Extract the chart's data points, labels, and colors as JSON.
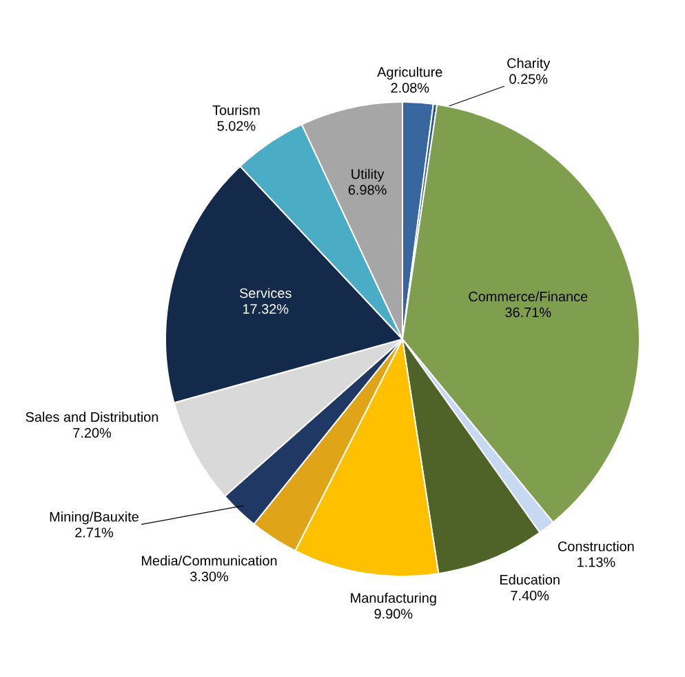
{
  "chart_data": {
    "type": "pie",
    "categories": [
      "Agriculture",
      "Charity",
      "Commerce/Finance",
      "Construction",
      "Education",
      "Manufacturing",
      "Media/Communication",
      "Mining/Bauxite",
      "Sales and Distribution",
      "Services",
      "Tourism",
      "Utility"
    ],
    "values": [
      2.08,
      0.25,
      36.71,
      1.13,
      7.4,
      9.9,
      3.3,
      2.71,
      7.2,
      17.32,
      5.02,
      6.98
    ],
    "value_labels": [
      "2.08%",
      "0.25%",
      "36.71%",
      "1.13%",
      "7.40%",
      "9.90%",
      "3.30%",
      "2.71%",
      "7.20%",
      "17.32%",
      "5.02%",
      "6.98%"
    ],
    "colors": [
      "#3867a0",
      "#2f5c99",
      "#7f9f4f",
      "#c6d9f0",
      "#4f6228",
      "#ffc000",
      "#e0a418",
      "#1f3864",
      "#d9d9d9",
      "#132a4a",
      "#4bacc6",
      "#a6a6a6"
    ]
  }
}
